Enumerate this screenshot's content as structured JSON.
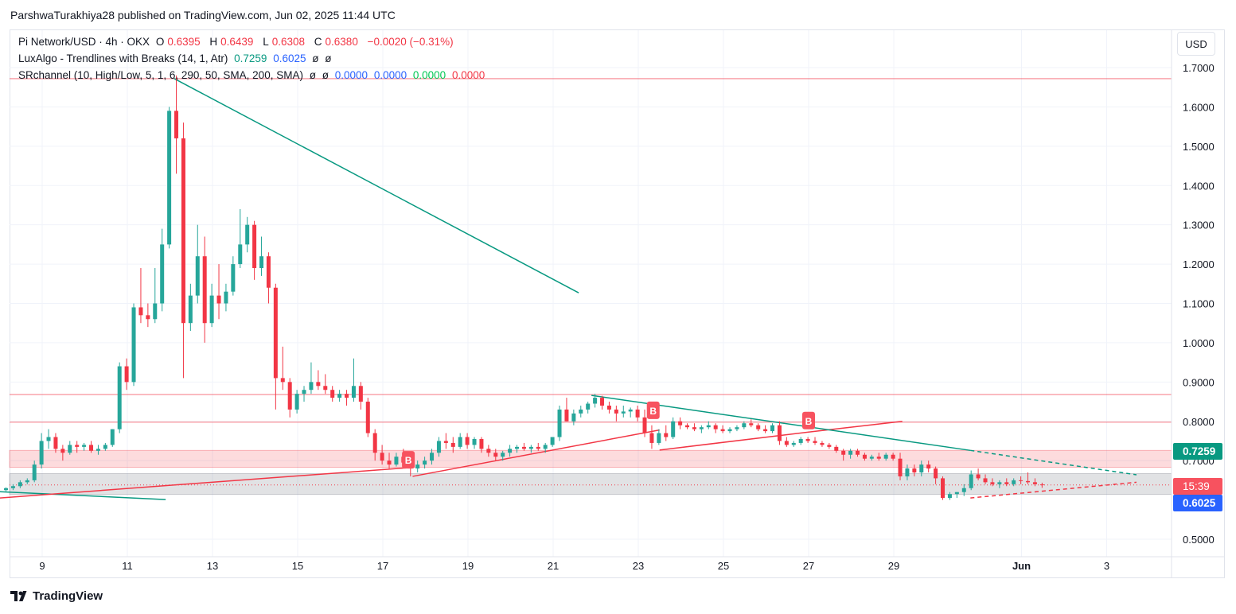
{
  "header": {
    "published_text": "ParshwaTurakhiya28 published on TradingView.com, Jun 02, 2025 11:44 UTC"
  },
  "legend": {
    "symbol": "Pi Network/USD · 4h · OKX",
    "o_label": "O",
    "o_value": "0.6395",
    "h_label": "H",
    "h_value": "0.6439",
    "l_label": "L",
    "l_value": "0.6308",
    "c_label": "C",
    "c_value": "0.6380",
    "change": "−0.0020 (−0.31%)",
    "luxalgo_name": "LuxAlgo - Trendlines with Breaks (14, 1, Atr)",
    "luxalgo_v1": "0.7259",
    "luxalgo_v2": "0.6025",
    "luxalgo_na1": "ø",
    "luxalgo_na2": "ø",
    "sr_name": "SRchannel (10, High/Low, 5, 1, 6, 290, 50, SMA, 200, SMA)",
    "sr_na1": "ø",
    "sr_na2": "ø",
    "sr_v1": "0.0000",
    "sr_v2": "0.0000",
    "sr_v3": "0.0000",
    "sr_v4": "0.0000"
  },
  "currency_button": "USD",
  "price_labels": {
    "upper_trend": "0.7259",
    "countdown": "15:39",
    "lower_trend": "0.6025"
  },
  "footer": {
    "brand": "TradingView"
  },
  "colors": {
    "up": "#26a69a",
    "down": "#f23645",
    "trend_down": "#089981",
    "trend_up": "#f23645",
    "blue": "#2962ff"
  },
  "chart_data": {
    "type": "candlestick",
    "title": "Pi Network/USD · 4h · OKX",
    "ylim": [
      0.44,
      1.78
    ],
    "y_ticks": [
      "1.7000",
      "1.6000",
      "1.5000",
      "1.4000",
      "1.3000",
      "1.2000",
      "1.1000",
      "1.0000",
      "0.9000",
      "0.8000",
      "0.7000",
      "0.5000"
    ],
    "x_ticks": [
      {
        "label": "9",
        "day": 9
      },
      {
        "label": "11",
        "day": 11
      },
      {
        "label": "13",
        "day": 13
      },
      {
        "label": "15",
        "day": 15
      },
      {
        "label": "17",
        "day": 17
      },
      {
        "label": "19",
        "day": 19
      },
      {
        "label": "21",
        "day": 21
      },
      {
        "label": "23",
        "day": 23
      },
      {
        "label": "25",
        "day": 25
      },
      {
        "label": "27",
        "day": 27
      },
      {
        "label": "29",
        "day": 29
      },
      {
        "label": "Jun",
        "day": 32
      },
      {
        "label": "3",
        "day": 34
      }
    ],
    "candles": [
      [
        0.625,
        0.632,
        0.622,
        0.63
      ],
      [
        0.63,
        0.64,
        0.625,
        0.635
      ],
      [
        0.635,
        0.65,
        0.63,
        0.645
      ],
      [
        0.645,
        0.655,
        0.64,
        0.65
      ],
      [
        0.65,
        0.7,
        0.645,
        0.69
      ],
      [
        0.69,
        0.77,
        0.68,
        0.75
      ],
      [
        0.75,
        0.78,
        0.73,
        0.76
      ],
      [
        0.76,
        0.77,
        0.72,
        0.73
      ],
      [
        0.73,
        0.74,
        0.7,
        0.72
      ],
      [
        0.72,
        0.75,
        0.715,
        0.74
      ],
      [
        0.74,
        0.75,
        0.72,
        0.735
      ],
      [
        0.735,
        0.745,
        0.725,
        0.74
      ],
      [
        0.74,
        0.75,
        0.72,
        0.725
      ],
      [
        0.725,
        0.74,
        0.715,
        0.73
      ],
      [
        0.73,
        0.745,
        0.725,
        0.74
      ],
      [
        0.74,
        0.78,
        0.735,
        0.78
      ],
      [
        0.78,
        0.95,
        0.77,
        0.94
      ],
      [
        0.94,
        0.96,
        0.88,
        0.9
      ],
      [
        0.9,
        1.1,
        0.89,
        1.09
      ],
      [
        1.09,
        1.19,
        1.05,
        1.07
      ],
      [
        1.07,
        1.1,
        1.04,
        1.06
      ],
      [
        1.06,
        1.19,
        1.05,
        1.1
      ],
      [
        1.1,
        1.29,
        1.08,
        1.25
      ],
      [
        1.25,
        1.6,
        1.24,
        1.59
      ],
      [
        1.59,
        1.68,
        1.43,
        1.52
      ],
      [
        1.52,
        1.56,
        0.91,
        1.05
      ],
      [
        1.05,
        1.15,
        1.03,
        1.12
      ],
      [
        1.12,
        1.3,
        1.1,
        1.22
      ],
      [
        1.22,
        1.27,
        1.0,
        1.05
      ],
      [
        1.05,
        1.15,
        1.04,
        1.12
      ],
      [
        1.12,
        1.2,
        1.06,
        1.1
      ],
      [
        1.1,
        1.15,
        1.08,
        1.13
      ],
      [
        1.13,
        1.22,
        1.12,
        1.2
      ],
      [
        1.2,
        1.34,
        1.19,
        1.25
      ],
      [
        1.25,
        1.32,
        1.23,
        1.3
      ],
      [
        1.3,
        1.31,
        1.16,
        1.19
      ],
      [
        1.19,
        1.27,
        1.17,
        1.22
      ],
      [
        1.22,
        1.23,
        1.1,
        1.14
      ],
      [
        1.14,
        1.15,
        0.83,
        0.91
      ],
      [
        0.91,
        0.99,
        0.88,
        0.9
      ],
      [
        0.9,
        0.91,
        0.81,
        0.83
      ],
      [
        0.83,
        0.88,
        0.82,
        0.87
      ],
      [
        0.87,
        0.89,
        0.85,
        0.88
      ],
      [
        0.88,
        0.95,
        0.87,
        0.9
      ],
      [
        0.9,
        0.93,
        0.88,
        0.89
      ],
      [
        0.89,
        0.92,
        0.87,
        0.88
      ],
      [
        0.88,
        0.89,
        0.85,
        0.86
      ],
      [
        0.86,
        0.88,
        0.85,
        0.87
      ],
      [
        0.87,
        0.88,
        0.84,
        0.86
      ],
      [
        0.86,
        0.96,
        0.85,
        0.89
      ],
      [
        0.89,
        0.9,
        0.83,
        0.85
      ],
      [
        0.85,
        0.86,
        0.76,
        0.77
      ],
      [
        0.77,
        0.78,
        0.7,
        0.72
      ],
      [
        0.72,
        0.74,
        0.69,
        0.7
      ],
      [
        0.7,
        0.72,
        0.68,
        0.69
      ],
      [
        0.69,
        0.72,
        0.685,
        0.71
      ],
      [
        0.71,
        0.73,
        0.69,
        0.695
      ],
      [
        0.695,
        0.71,
        0.66,
        0.68
      ],
      [
        0.68,
        0.7,
        0.67,
        0.69
      ],
      [
        0.69,
        0.71,
        0.68,
        0.7
      ],
      [
        0.7,
        0.73,
        0.69,
        0.72
      ],
      [
        0.72,
        0.76,
        0.71,
        0.75
      ],
      [
        0.75,
        0.77,
        0.73,
        0.745
      ],
      [
        0.745,
        0.76,
        0.72,
        0.735
      ],
      [
        0.735,
        0.77,
        0.73,
        0.76
      ],
      [
        0.76,
        0.77,
        0.73,
        0.74
      ],
      [
        0.74,
        0.76,
        0.73,
        0.755
      ],
      [
        0.755,
        0.76,
        0.72,
        0.73
      ],
      [
        0.73,
        0.74,
        0.71,
        0.72
      ],
      [
        0.72,
        0.73,
        0.7,
        0.71
      ],
      [
        0.71,
        0.725,
        0.7,
        0.72
      ],
      [
        0.72,
        0.74,
        0.71,
        0.73
      ],
      [
        0.73,
        0.74,
        0.72,
        0.735
      ],
      [
        0.735,
        0.745,
        0.725,
        0.73
      ],
      [
        0.73,
        0.74,
        0.72,
        0.735
      ],
      [
        0.735,
        0.745,
        0.725,
        0.73
      ],
      [
        0.73,
        0.745,
        0.72,
        0.74
      ],
      [
        0.74,
        0.76,
        0.735,
        0.76
      ],
      [
        0.76,
        0.84,
        0.75,
        0.83
      ],
      [
        0.83,
        0.86,
        0.8,
        0.8
      ],
      [
        0.8,
        0.83,
        0.79,
        0.82
      ],
      [
        0.82,
        0.84,
        0.81,
        0.83
      ],
      [
        0.83,
        0.85,
        0.82,
        0.845
      ],
      [
        0.845,
        0.87,
        0.835,
        0.86
      ],
      [
        0.86,
        0.865,
        0.83,
        0.84
      ],
      [
        0.84,
        0.85,
        0.82,
        0.83
      ],
      [
        0.83,
        0.84,
        0.8,
        0.82
      ],
      [
        0.82,
        0.84,
        0.81,
        0.825
      ],
      [
        0.825,
        0.835,
        0.81,
        0.83
      ],
      [
        0.83,
        0.84,
        0.8,
        0.81
      ],
      [
        0.81,
        0.83,
        0.76,
        0.77
      ],
      [
        0.77,
        0.79,
        0.73,
        0.745
      ],
      [
        0.745,
        0.78,
        0.74,
        0.77
      ],
      [
        0.77,
        0.79,
        0.75,
        0.76
      ],
      [
        0.76,
        0.81,
        0.755,
        0.8
      ],
      [
        0.8,
        0.81,
        0.78,
        0.79
      ],
      [
        0.79,
        0.795,
        0.78,
        0.785
      ],
      [
        0.785,
        0.795,
        0.775,
        0.78
      ],
      [
        0.78,
        0.79,
        0.77,
        0.785
      ],
      [
        0.785,
        0.8,
        0.78,
        0.79
      ],
      [
        0.79,
        0.795,
        0.77,
        0.78
      ],
      [
        0.78,
        0.79,
        0.77,
        0.775
      ],
      [
        0.775,
        0.785,
        0.77,
        0.78
      ],
      [
        0.78,
        0.79,
        0.775,
        0.785
      ],
      [
        0.785,
        0.8,
        0.78,
        0.795
      ],
      [
        0.795,
        0.805,
        0.785,
        0.79
      ],
      [
        0.79,
        0.795,
        0.775,
        0.78
      ],
      [
        0.78,
        0.79,
        0.77,
        0.775
      ],
      [
        0.775,
        0.795,
        0.77,
        0.79
      ],
      [
        0.79,
        0.8,
        0.74,
        0.75
      ],
      [
        0.75,
        0.76,
        0.735,
        0.74
      ],
      [
        0.74,
        0.75,
        0.735,
        0.745
      ],
      [
        0.745,
        0.76,
        0.74,
        0.755
      ],
      [
        0.755,
        0.76,
        0.745,
        0.75
      ],
      [
        0.75,
        0.76,
        0.74,
        0.745
      ],
      [
        0.745,
        0.75,
        0.735,
        0.74
      ],
      [
        0.74,
        0.745,
        0.73,
        0.735
      ],
      [
        0.735,
        0.74,
        0.72,
        0.725
      ],
      [
        0.725,
        0.73,
        0.7,
        0.715
      ],
      [
        0.715,
        0.73,
        0.705,
        0.725
      ],
      [
        0.725,
        0.73,
        0.71,
        0.715
      ],
      [
        0.715,
        0.72,
        0.7,
        0.705
      ],
      [
        0.705,
        0.715,
        0.7,
        0.71
      ],
      [
        0.71,
        0.72,
        0.7,
        0.705
      ],
      [
        0.705,
        0.72,
        0.7,
        0.715
      ],
      [
        0.715,
        0.72,
        0.7,
        0.705
      ],
      [
        0.705,
        0.72,
        0.65,
        0.66
      ],
      [
        0.66,
        0.69,
        0.65,
        0.68
      ],
      [
        0.68,
        0.69,
        0.66,
        0.67
      ],
      [
        0.67,
        0.7,
        0.66,
        0.69
      ],
      [
        0.69,
        0.7,
        0.67,
        0.68
      ],
      [
        0.68,
        0.685,
        0.64,
        0.655
      ],
      [
        0.655,
        0.66,
        0.6,
        0.605
      ],
      [
        0.605,
        0.62,
        0.6,
        0.615
      ],
      [
        0.615,
        0.62,
        0.605,
        0.62
      ],
      [
        0.62,
        0.64,
        0.61,
        0.63
      ],
      [
        0.63,
        0.675,
        0.625,
        0.665
      ],
      [
        0.665,
        0.68,
        0.65,
        0.655
      ],
      [
        0.655,
        0.665,
        0.64,
        0.645
      ],
      [
        0.645,
        0.655,
        0.635,
        0.64
      ],
      [
        0.64,
        0.65,
        0.63,
        0.645
      ],
      [
        0.645,
        0.655,
        0.635,
        0.64
      ],
      [
        0.64,
        0.655,
        0.635,
        0.65
      ],
      [
        0.65,
        0.66,
        0.64,
        0.648
      ],
      [
        0.648,
        0.67,
        0.64,
        0.645
      ],
      [
        0.645,
        0.655,
        0.635,
        0.64
      ],
      [
        0.6395,
        0.6439,
        0.6308,
        0.638
      ]
    ],
    "support_resistance_lines": [
      1.672,
      0.868,
      0.798
    ],
    "resistance_zone": [
      0.683,
      0.726
    ],
    "support_zone": [
      0.614,
      0.667
    ],
    "current_price": 0.638,
    "trendlines": [
      {
        "color": "#089981",
        "points": [
          [
            12.1,
            1.672
          ],
          [
            21.6,
            1.127
          ]
        ]
      },
      {
        "color": "#089981",
        "points": [
          [
            8.0,
            0.621
          ],
          [
            11.9,
            0.601
          ]
        ]
      },
      {
        "color": "#f23645",
        "points": [
          [
            8.0,
            0.605
          ],
          [
            17.6,
            0.682
          ]
        ]
      },
      {
        "color": "#f23645",
        "points": [
          [
            17.7,
            0.66
          ],
          [
            23.5,
            0.778
          ]
        ]
      },
      {
        "color": "#f23645",
        "points": [
          [
            23.5,
            0.727
          ],
          [
            27.1,
            0.774
          ],
          [
            29.2,
            0.8
          ]
        ]
      },
      {
        "color": "#089981",
        "points": [
          [
            21.9,
            0.866
          ],
          [
            30.8,
            0.726
          ]
        ]
      },
      {
        "color": "#089981",
        "dashed": true,
        "points": [
          [
            30.8,
            0.726
          ],
          [
            34.7,
            0.664
          ]
        ]
      },
      {
        "color": "#f23645",
        "dashed": true,
        "points": [
          [
            30.8,
            0.605
          ],
          [
            34.7,
            0.645
          ]
        ]
      }
    ],
    "markers": [
      {
        "label": "B",
        "day": 17.6,
        "price": 0.702
      },
      {
        "label": "B",
        "day": 23.35,
        "price": 0.828
      },
      {
        "label": "B",
        "day": 27.0,
        "price": 0.802
      }
    ]
  }
}
